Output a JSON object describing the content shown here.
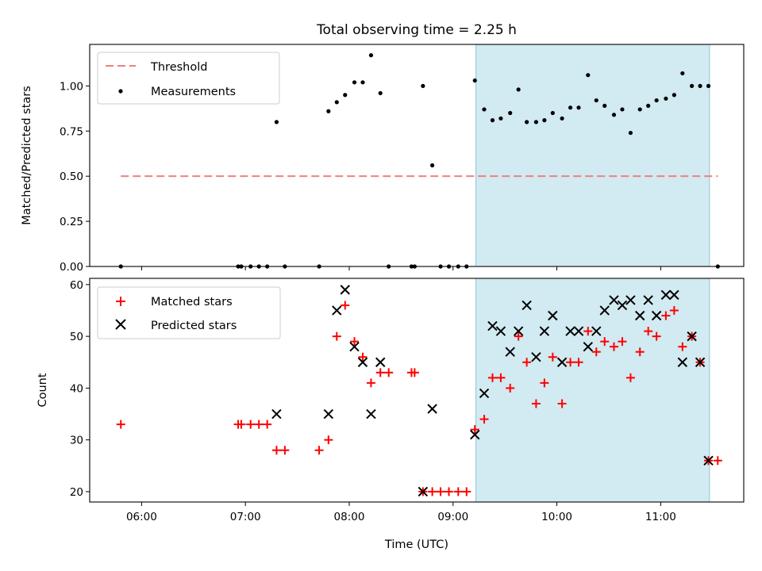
{
  "chart_data": [
    {
      "type": "scatter",
      "title": "Total observing time = 2.25 h",
      "xlabel": "",
      "ylabel": "Matched/Predicted stars",
      "ylim": [
        0,
        1.23
      ],
      "yticks": [
        0.0,
        0.25,
        0.5,
        0.75,
        1.0
      ],
      "ytick_labels": [
        "0.00",
        "0.25",
        "0.50",
        "0.75",
        "1.00"
      ],
      "xlim": [
        5.5,
        11.8
      ],
      "shaded_range": [
        9.22,
        11.47
      ],
      "shaded_color": "#add8e6",
      "legend_position": "top-left",
      "grid": false,
      "threshold": {
        "name": "Threshold",
        "value": 0.5,
        "x_range": [
          5.8,
          11.55
        ],
        "color": "#f08080"
      },
      "series": [
        {
          "name": "Measurements",
          "color": "#000000",
          "marker": "dot",
          "x": [
            5.8,
            6.93,
            6.96,
            7.05,
            7.13,
            7.21,
            7.3,
            7.38,
            7.71,
            7.8,
            7.88,
            7.96,
            8.05,
            8.13,
            8.21,
            8.3,
            8.38,
            8.6,
            8.63,
            8.71,
            8.8,
            8.88,
            8.96,
            9.05,
            9.13,
            9.21,
            9.3,
            9.38,
            9.46,
            9.55,
            9.63,
            9.71,
            9.8,
            9.88,
            9.96,
            10.05,
            10.13,
            10.21,
            10.3,
            10.38,
            10.46,
            10.55,
            10.63,
            10.71,
            10.8,
            10.88,
            10.96,
            11.05,
            11.13,
            11.21,
            11.3,
            11.38,
            11.46,
            11.55
          ],
          "y": [
            0.0,
            0.0,
            0.0,
            0.0,
            0.0,
            0.0,
            0.8,
            0.0,
            0.0,
            0.86,
            0.91,
            0.95,
            1.02,
            1.02,
            1.17,
            0.96,
            0.0,
            0.0,
            0.0,
            1.0,
            0.56,
            0.0,
            0.0,
            0.0,
            0.0,
            1.03,
            0.87,
            0.81,
            0.82,
            0.85,
            0.98,
            0.8,
            0.8,
            0.81,
            0.85,
            0.82,
            0.88,
            0.88,
            1.06,
            0.92,
            0.89,
            0.84,
            0.87,
            0.74,
            0.87,
            0.89,
            0.92,
            0.93,
            0.95,
            1.07,
            1.0,
            1.0,
            1.0,
            0.0
          ]
        }
      ]
    },
    {
      "type": "scatter",
      "title": "",
      "xlabel": "Time (UTC)",
      "ylabel": "Count",
      "ylim": [
        18,
        61.2
      ],
      "yticks": [
        20,
        30,
        40,
        50,
        60
      ],
      "ytick_labels": [
        "20",
        "30",
        "40",
        "50",
        "60"
      ],
      "xlim": [
        5.5,
        11.8
      ],
      "xticks": [
        6,
        7,
        8,
        9,
        10,
        11
      ],
      "xtick_labels": [
        "06:00",
        "07:00",
        "08:00",
        "09:00",
        "10:00",
        "11:00"
      ],
      "shaded_range": [
        9.22,
        11.47
      ],
      "shaded_color": "#add8e6",
      "legend_position": "top-left",
      "grid": false,
      "series": [
        {
          "name": "Matched stars",
          "color": "#ff0000",
          "marker": "plus",
          "x": [
            5.8,
            6.93,
            6.96,
            7.05,
            7.13,
            7.21,
            7.3,
            7.38,
            7.71,
            7.8,
            7.88,
            7.96,
            8.05,
            8.13,
            8.21,
            8.3,
            8.38,
            8.6,
            8.63,
            8.71,
            8.8,
            8.88,
            8.96,
            9.05,
            9.13,
            9.21,
            9.3,
            9.38,
            9.46,
            9.55,
            9.63,
            9.71,
            9.8,
            9.88,
            9.96,
            10.05,
            10.13,
            10.21,
            10.3,
            10.38,
            10.46,
            10.55,
            10.63,
            10.71,
            10.8,
            10.88,
            10.96,
            11.05,
            11.13,
            11.21,
            11.3,
            11.38,
            11.46,
            11.55
          ],
          "y": [
            33,
            33,
            33,
            33,
            33,
            33,
            28,
            28,
            28,
            30,
            50,
            56,
            49,
            46,
            41,
            43,
            43,
            43,
            43,
            20,
            20,
            20,
            20,
            20,
            20,
            32,
            34,
            42,
            42,
            40,
            50,
            45,
            37,
            41,
            46,
            37,
            45,
            45,
            51,
            47,
            49,
            48,
            49,
            42,
            47,
            51,
            50,
            54,
            55,
            48,
            50,
            45,
            26,
            26
          ]
        },
        {
          "name": "Predicted stars",
          "color": "#000000",
          "marker": "x",
          "x": [
            7.3,
            7.8,
            7.88,
            7.96,
            8.05,
            8.13,
            8.21,
            8.3,
            8.71,
            8.8,
            9.21,
            9.3,
            9.38,
            9.46,
            9.55,
            9.63,
            9.71,
            9.8,
            9.88,
            9.96,
            10.05,
            10.13,
            10.21,
            10.3,
            10.38,
            10.46,
            10.55,
            10.63,
            10.71,
            10.8,
            10.88,
            10.96,
            11.05,
            11.13,
            11.21,
            11.3,
            11.38,
            11.46
          ],
          "y": [
            35,
            35,
            55,
            59,
            48,
            45,
            35,
            45,
            20,
            36,
            31,
            39,
            52,
            51,
            47,
            51,
            56,
            46,
            51,
            54,
            45,
            51,
            51,
            48,
            51,
            55,
            57,
            56,
            57,
            54,
            57,
            54,
            58,
            58,
            45,
            50,
            45,
            26
          ]
        }
      ]
    }
  ]
}
